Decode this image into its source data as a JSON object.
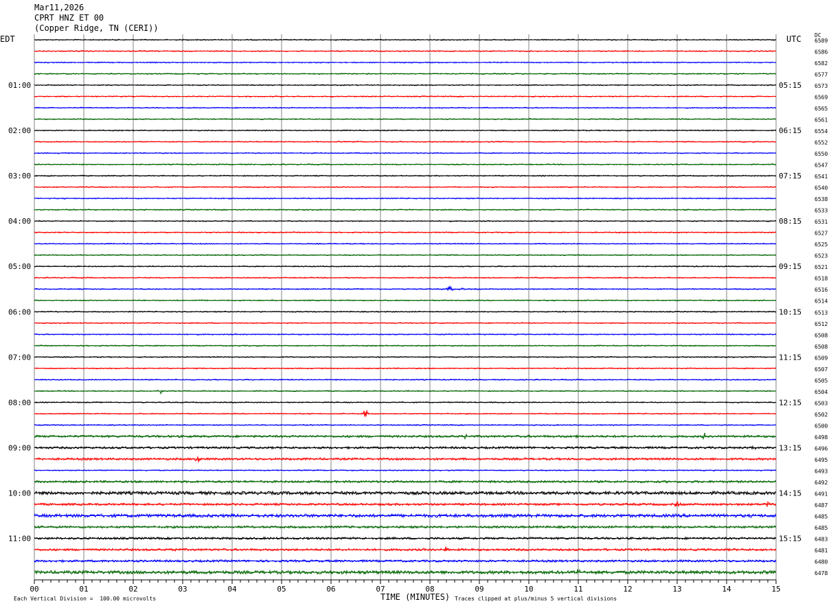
{
  "header": {
    "date": "Mar11,2026",
    "station": "CPRT HNZ ET 00",
    "location": "(Copper Ridge, TN (CERI))"
  },
  "left_zone_label": "EDT",
  "right_zone_label": "UTC",
  "dc_label": "DC",
  "footer": {
    "scale_note": "Each Vertical Division =  100.00 microvolts",
    "clip_note": "Traces clipped at plus/minus 5 vertical divisions"
  },
  "chart_data": {
    "type": "line",
    "title": "CPRT HNZ ET 00",
    "xlabel": "TIME (MINUTES)",
    "ylabel": "",
    "x_ticks": [
      "00",
      "01",
      "02",
      "03",
      "04",
      "05",
      "06",
      "07",
      "08",
      "09",
      "10",
      "11",
      "12",
      "13",
      "14",
      "15"
    ],
    "xlim": [
      0,
      15
    ],
    "minutes_per_line": 15,
    "line_count": 48,
    "left_time_labels": [
      {
        "line": 4,
        "text": "01:00"
      },
      {
        "line": 8,
        "text": "02:00"
      },
      {
        "line": 12,
        "text": "03:00"
      },
      {
        "line": 16,
        "text": "04:00"
      },
      {
        "line": 20,
        "text": "05:00"
      },
      {
        "line": 24,
        "text": "06:00"
      },
      {
        "line": 28,
        "text": "07:00"
      },
      {
        "line": 32,
        "text": "08:00"
      },
      {
        "line": 36,
        "text": "09:00"
      },
      {
        "line": 40,
        "text": "10:00"
      },
      {
        "line": 44,
        "text": "11:00"
      }
    ],
    "right_time_labels": [
      {
        "line": 4,
        "text": "05:15"
      },
      {
        "line": 8,
        "text": "06:15"
      },
      {
        "line": 12,
        "text": "07:15"
      },
      {
        "line": 16,
        "text": "08:15"
      },
      {
        "line": 20,
        "text": "09:15"
      },
      {
        "line": 24,
        "text": "10:15"
      },
      {
        "line": 28,
        "text": "11:15"
      },
      {
        "line": 32,
        "text": "12:15"
      },
      {
        "line": 36,
        "text": "13:15"
      },
      {
        "line": 40,
        "text": "14:15"
      },
      {
        "line": 44,
        "text": "15:15"
      }
    ],
    "dc_offsets": [
      6589,
      6586,
      6582,
      6577,
      6573,
      6569,
      6565,
      6561,
      6554,
      6552,
      6550,
      6547,
      6541,
      6540,
      6538,
      6533,
      6531,
      6527,
      6525,
      6523,
      6521,
      6518,
      6516,
      6514,
      6513,
      6512,
      6508,
      6508,
      6509,
      6507,
      6505,
      6504,
      6503,
      6502,
      6500,
      6498,
      6496,
      6495,
      6493,
      6492,
      6491,
      6487,
      6485,
      6485,
      6483,
      6481,
      6480,
      6478
    ],
    "trace_colors": [
      "#000000",
      "#ff0000",
      "#0000ff",
      "#006400"
    ],
    "noise_level": [
      1,
      1,
      1,
      1,
      1,
      1,
      1,
      1,
      1,
      1,
      1,
      1,
      1,
      1,
      1,
      1,
      1,
      1,
      1,
      1,
      1,
      1,
      1,
      1,
      1,
      1,
      1,
      1,
      1,
      1,
      1,
      1,
      1,
      1,
      1,
      2,
      2,
      2,
      1,
      2,
      3,
      2,
      3,
      2,
      2,
      2,
      2,
      3
    ],
    "events": [
      {
        "line": 22,
        "minute": 8.4,
        "amplitude": 6
      },
      {
        "line": 22,
        "minute": 8.65,
        "amplitude": 3
      },
      {
        "line": 31,
        "minute": 2.55,
        "amplitude": 5
      },
      {
        "line": 33,
        "minute": 6.7,
        "amplitude": 7
      },
      {
        "line": 35,
        "minute": 8.7,
        "amplitude": 4
      },
      {
        "line": 35,
        "minute": 11.0,
        "amplitude": 4
      },
      {
        "line": 35,
        "minute": 13.55,
        "amplitude": 4
      },
      {
        "line": 36,
        "minute": 14.55,
        "amplitude": 4
      },
      {
        "line": 37,
        "minute": 3.3,
        "amplitude": 5
      },
      {
        "line": 41,
        "minute": 13.0,
        "amplitude": 4
      },
      {
        "line": 41,
        "minute": 14.8,
        "amplitude": 5
      },
      {
        "line": 45,
        "minute": 8.3,
        "amplitude": 6
      },
      {
        "line": 45,
        "minute": 2.9,
        "amplitude": 3
      },
      {
        "line": 47,
        "minute": 11.0,
        "amplitude": 4
      }
    ],
    "grid": true
  }
}
